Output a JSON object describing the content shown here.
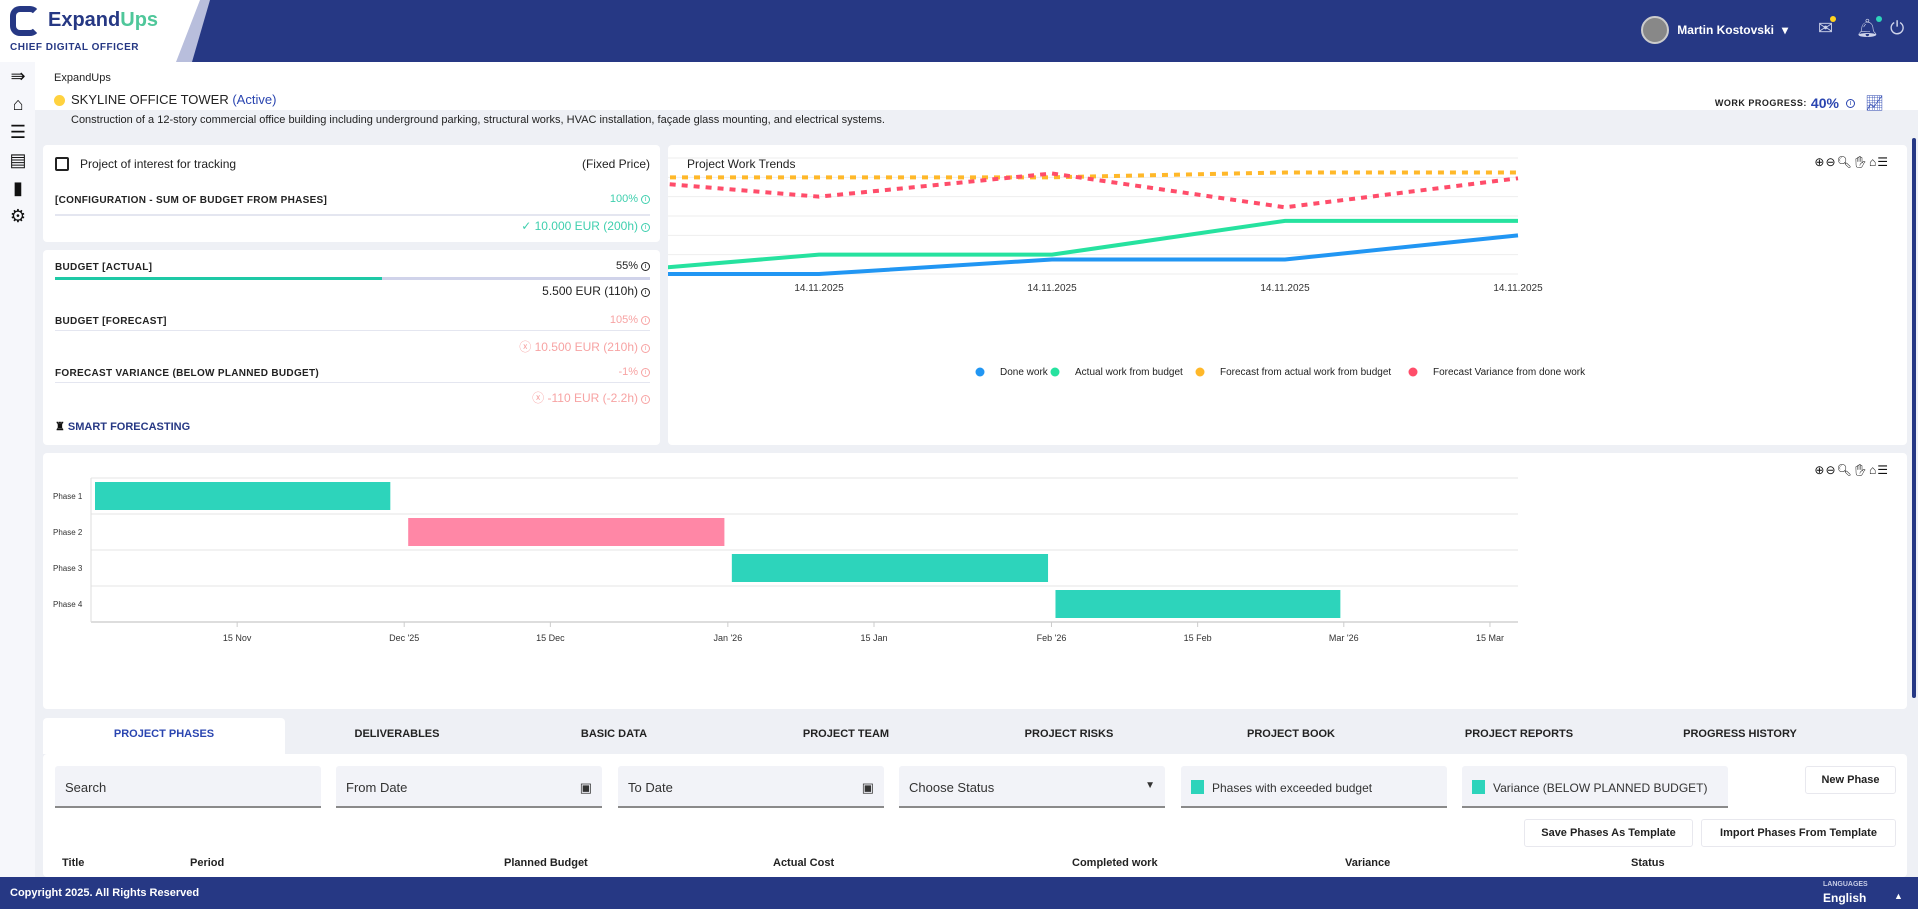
{
  "brand": {
    "name_a": "Expand",
    "name_b": "Ups",
    "subtitle": "CHIEF DIGITAL OFFICER"
  },
  "user": {
    "name": "Martin Kostovski",
    "caret": "▾"
  },
  "colors": {
    "navy": "#263884",
    "teal": "#2dd4bb",
    "pink": "#ff87a6",
    "blue": "#2196f3",
    "green": "#26e29f",
    "orange": "#ffb829",
    "red": "#ff4d6a"
  },
  "project": {
    "breadcrumb": "ExpandUps",
    "title": "SKYLINE OFFICE TOWER",
    "status": "(Active)",
    "description": "Construction of a 12-story commercial office building including underground parking, structural works, HVAC installation, façade glass mounting, and electrical systems.",
    "work_progress_label": "WORK PROGRESS:",
    "work_progress": "40%"
  },
  "config": {
    "tracking_label": "Project of interest for tracking",
    "pricing": "(Fixed Price)",
    "config_label": "[CONFIGURATION - SUM OF BUDGET FROM PHASES]",
    "config_pct": "100%",
    "config_value": "10.000 EUR (200h)"
  },
  "budget": {
    "actual_label": "BUDGET [ACTUAL]",
    "actual_pct": "55%",
    "actual_progress": 55,
    "actual_value": "5.500 EUR (110h)",
    "forecast_label": "BUDGET [FORECAST]",
    "forecast_pct": "105%",
    "forecast_value": "10.500 EUR (210h)",
    "variance_label": "FORECAST VARIANCE (BELOW PLANNED BUDGET)",
    "variance_pct": "-1%",
    "variance_value": "-110 EUR (-2.2h)",
    "smart": "SMART FORECASTING"
  },
  "chart_data": [
    {
      "type": "line",
      "title": "Project Work Trends",
      "categories": [
        "14.11.2025",
        "14.11.2025",
        "14.11.2025",
        "14.11.2025",
        "14.11.2025"
      ],
      "ylim": [
        0,
        120
      ],
      "yticks": [
        "0",
        "20",
        "40",
        "60",
        "80",
        "100",
        "120"
      ],
      "series": [
        {
          "name": "Done work",
          "color": "#2196f3",
          "dashed": false,
          "values": [
            0,
            0,
            15,
            15,
            40
          ]
        },
        {
          "name": "Actual work from budget",
          "color": "#26e29f",
          "dashed": false,
          "values": [
            0,
            20,
            20,
            55,
            55
          ]
        },
        {
          "name": "Forecast from actual work from budget",
          "color": "#ffb829",
          "dashed": true,
          "values": [
            100,
            100,
            100,
            105,
            105
          ]
        },
        {
          "name": "Forecast Variance from done work",
          "color": "#ff4d6a",
          "dashed": true,
          "values": [
            100,
            80,
            104,
            69,
            99
          ]
        }
      ],
      "legend": "bottom"
    },
    {
      "type": "gantt",
      "range": [
        "2025-11-01",
        "2025-03-18"
      ],
      "tasks": [
        {
          "name": "Phase 1",
          "start": "2025-11-01",
          "end": "2025-11-29",
          "color": "#2dd4bb"
        },
        {
          "name": "Phase 2",
          "start": "2025-12-01",
          "end": "2025-12-31",
          "color": "#ff87a6"
        },
        {
          "name": "Phase 3",
          "start": "2026-01-01",
          "end": "2026-01-31",
          "color": "#2dd4bb"
        },
        {
          "name": "Phase 4",
          "start": "2026-02-01",
          "end": "2026-02-28",
          "color": "#2dd4bb"
        }
      ],
      "xticks": [
        {
          "label": "15 Nov",
          "day": 14
        },
        {
          "label": "Dec '25",
          "day": 30
        },
        {
          "label": "15 Dec",
          "day": 44
        },
        {
          "label": "Jan '26",
          "day": 61
        },
        {
          "label": "15 Jan",
          "day": 75
        },
        {
          "label": "Feb '26",
          "day": 92
        },
        {
          "label": "15 Feb",
          "day": 106
        },
        {
          "label": "Mar '26",
          "day": 120
        },
        {
          "label": "15 Mar",
          "day": 134
        }
      ],
      "total_days": 138
    }
  ],
  "tabs": [
    "PROJECT PHASES",
    "DELIVERABLES",
    "BASIC DATA",
    "PROJECT TEAM",
    "PROJECT RISKS",
    "PROJECT BOOK",
    "PROJECT REPORTS",
    "PROGRESS HISTORY"
  ],
  "filters": {
    "search": "Search",
    "from": "From Date",
    "to": "To Date",
    "status": "Choose Status",
    "exceeded": "Phases with exceeded budget",
    "variance": "Variance (BELOW PLANNED BUDGET)"
  },
  "buttons": {
    "new_phase": "New Phase",
    "save_template": "Save Phases As Template",
    "import_template": "Import Phases From Template"
  },
  "table": {
    "headers": [
      "Title",
      "Period",
      "Planned Budget",
      "Actual Cost",
      "Completed work",
      "Variance",
      "Status"
    ]
  },
  "footer": {
    "copyright": "Copyright 2025. All Rights Reserved",
    "languages_label": "LANGUAGES",
    "language": "English"
  }
}
